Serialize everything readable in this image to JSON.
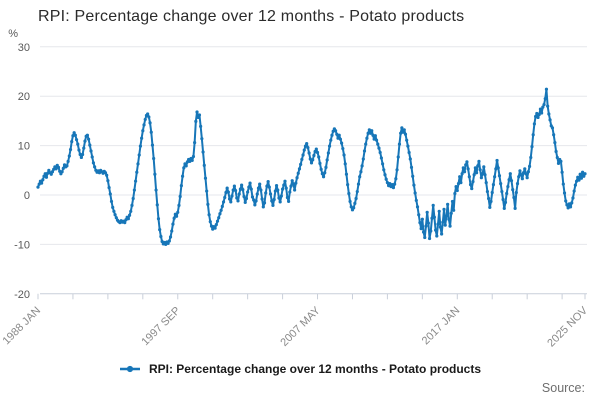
{
  "title": "RPI: Percentage change over 12 months - Potato products",
  "legend": {
    "label": "RPI: Percentage change over 12 months - Potato products"
  },
  "source_label": "Source:",
  "chart_data": {
    "type": "line",
    "title": "RPI: Percentage change over 12 months - Potato products",
    "unit": "%",
    "xlabel": "",
    "ylabel": "%",
    "ylim": [
      -20,
      30
    ],
    "yticks": [
      30,
      20,
      10,
      0,
      -10,
      -20
    ],
    "grid": "horizontal",
    "legend_position": "bottom",
    "frequency": "monthly",
    "x_start": "1988 JAN",
    "x_end": "2025 NOV",
    "x_minor_tick_months": [
      0,
      29,
      58,
      87,
      116,
      145,
      174,
      203,
      232,
      261,
      290,
      319,
      348,
      377,
      406,
      435,
      454
    ],
    "x_tick_labels": [
      {
        "month": 0,
        "label": "1988 JAN"
      },
      {
        "month": 116,
        "label": "1997 SEP"
      },
      {
        "month": 232,
        "label": "2007 MAY"
      },
      {
        "month": 348,
        "label": "2017 JAN"
      },
      {
        "month": 454,
        "label": "2025 NOV"
      }
    ],
    "colors": {
      "line": "#1776b8",
      "grid": "#e6e7ec",
      "axis": "#c9cfda",
      "ytick_label": "#595959",
      "xtick_label": "#8a8a8a",
      "unit_label": "#595959"
    },
    "series": [
      {
        "name": "RPI: Percentage change over 12 months - Potato products",
        "color": "#1776b8",
        "values": [
          1.6,
          2.2,
          2.8,
          2.4,
          3.1,
          3.8,
          4.3,
          3.6,
          4.4,
          5.0,
          4.5,
          4.2,
          4.7,
          5.2,
          5.7,
          5.3,
          6.0,
          5.6,
          4.8,
          4.3,
          4.7,
          5.4,
          6.1,
          5.7,
          5.9,
          6.8,
          7.9,
          9.2,
          10.8,
          12.0,
          12.6,
          12.1,
          11.2,
          10.3,
          9.1,
          8.2,
          7.6,
          8.2,
          9.5,
          10.9,
          11.9,
          12.1,
          11.3,
          10.1,
          8.9,
          7.7,
          6.5,
          5.7,
          5.0,
          4.6,
          4.9,
          4.5,
          5.0,
          4.7,
          4.4,
          4.8,
          4.5,
          4.0,
          2.9,
          1.5,
          0.2,
          -1.3,
          -2.5,
          -3.3,
          -4.0,
          -4.6,
          -5.1,
          -5.4,
          -5.6,
          -5.2,
          -5.5,
          -5.3,
          -5.6,
          -5.0,
          -4.5,
          -4.8,
          -4.1,
          -3.3,
          -2.1,
          -0.7,
          1.0,
          2.8,
          4.6,
          6.3,
          8.1,
          9.9,
          11.5,
          13.0,
          14.2,
          15.3,
          16.1,
          16.4,
          15.8,
          14.6,
          12.7,
          10.1,
          7.4,
          4.2,
          1.0,
          -2.0,
          -4.8,
          -7.0,
          -8.4,
          -9.4,
          -9.9,
          -9.6,
          -10.0,
          -9.5,
          -9.8,
          -9.3,
          -8.5,
          -7.3,
          -5.9,
          -4.7,
          -3.9,
          -4.3,
          -3.5,
          -2.1,
          -0.3,
          1.9,
          3.8,
          5.5,
          6.3,
          5.9,
          6.7,
          7.2,
          6.8,
          7.4,
          7.0,
          7.8,
          10.6,
          14.9,
          16.8,
          15.7,
          16.2,
          13.9,
          11.4,
          8.7,
          6.0,
          3.4,
          0.8,
          -1.9,
          -4.0,
          -5.4,
          -6.3,
          -6.9,
          -6.4,
          -6.7,
          -6.0,
          -5.3,
          -4.6,
          -3.8,
          -3.1,
          -2.3,
          -1.4,
          -0.5,
          0.5,
          1.4,
          0.6,
          -0.8,
          -1.4,
          -0.2,
          1.0,
          1.8,
          0.9,
          -0.6,
          -1.2,
          0.2,
          1.2,
          2.0,
          1.1,
          -0.3,
          -1.5,
          -0.7,
          0.6,
          1.6,
          2.4,
          1.2,
          -0.4,
          -1.0,
          -2.0,
          -1.2,
          0.2,
          1.4,
          2.2,
          1.0,
          -0.8,
          -2.4,
          -1.6,
          0.4,
          1.8,
          2.7,
          1.6,
          0.2,
          -1.2,
          -2.1,
          -0.9,
          0.8,
          1.9,
          1.0,
          -0.6,
          -1.4,
          -0.2,
          1.2,
          2.0,
          2.8,
          1.4,
          -0.5,
          -1.3,
          0.6,
          1.8,
          2.9,
          2.2,
          1.0,
          2.4,
          3.5,
          4.4,
          5.3,
          6.2,
          7.2,
          8.1,
          9.1,
          9.9,
          10.4,
          9.6,
          8.5,
          7.3,
          6.5,
          7.1,
          8.0,
          8.8,
          9.3,
          8.6,
          7.7,
          6.4,
          5.2,
          4.3,
          3.7,
          4.5,
          5.6,
          7.1,
          8.5,
          9.9,
          11.1,
          12.1,
          12.9,
          13.4,
          13.0,
          12.3,
          11.5,
          12.1,
          11.3,
          10.5,
          9.4,
          8.1,
          6.3,
          4.2,
          2.1,
          0.3,
          -1.3,
          -2.4,
          -3.0,
          -2.6,
          -1.7,
          -0.7,
          0.7,
          2.2,
          3.7,
          4.7,
          5.9,
          7.3,
          8.9,
          10.3,
          11.5,
          12.5,
          13.2,
          12.5,
          13.0,
          12.1,
          11.3,
          12.0,
          11.1,
          10.3,
          9.5,
          8.6,
          7.5,
          6.3,
          5.1,
          4.1,
          3.2,
          2.5,
          1.9,
          2.3,
          1.7,
          2.1,
          1.5,
          2.2,
          3.3,
          5.1,
          7.7,
          10.3,
          12.5,
          13.6,
          12.7,
          13.2,
          12.3,
          11.1,
          9.9,
          8.6,
          7.3,
          5.6,
          3.8,
          2.0,
          0.4,
          -1.1,
          -2.4,
          -4.0,
          -5.6,
          -6.8,
          -4.9,
          -7.5,
          -8.6,
          -6.3,
          -3.5,
          -5.7,
          -8.8,
          -7.3,
          -4.7,
          -2.1,
          -4.5,
          -7.1,
          -8.3,
          -5.9,
          -3.3,
          -6.5,
          -7.9,
          -5.5,
          -2.9,
          -6.1,
          -4.3,
          -1.9,
          -4.9,
          -6.3,
          -3.7,
          -1.3,
          -3.1,
          0.3,
          1.7,
          0.9,
          2.3,
          3.7,
          2.5,
          4.3,
          5.5,
          4.7,
          6.1,
          6.7,
          5.3,
          3.7,
          2.1,
          1.3,
          2.7,
          4.1,
          5.5,
          4.5,
          5.9,
          6.8,
          5.1,
          3.5,
          4.3,
          5.7,
          4.1,
          2.5,
          0.7,
          -0.7,
          -2.5,
          -1.3,
          0.5,
          2.1,
          3.7,
          5.3,
          7.0,
          5.5,
          3.9,
          2.3,
          0.7,
          -0.9,
          -2.7,
          -1.5,
          0.3,
          1.7,
          3.1,
          4.3,
          2.9,
          1.1,
          -0.5,
          -2.7,
          0.5,
          2.3,
          3.7,
          4.9,
          4.1,
          3.3,
          4.5,
          5.3,
          4.3,
          3.5,
          4.7,
          5.8,
          7.6,
          9.8,
          12.2,
          14.4,
          15.9,
          16.5,
          15.7,
          16.3,
          17.4,
          16.6,
          17.8,
          18.3,
          19.5,
          21.4,
          18.0,
          16.4,
          15.2,
          14.0,
          13.6,
          12.2,
          10.6,
          8.8,
          7.6,
          6.4,
          7.2,
          6.8,
          4.6,
          2.2,
          0.4,
          -1.2,
          -2.0,
          -2.6,
          -1.8,
          -2.4,
          -1.6,
          -0.6,
          0.8,
          2.0,
          2.8,
          3.6,
          3.0,
          4.2,
          3.4,
          4.6,
          3.8,
          4.3
        ]
      }
    ]
  }
}
